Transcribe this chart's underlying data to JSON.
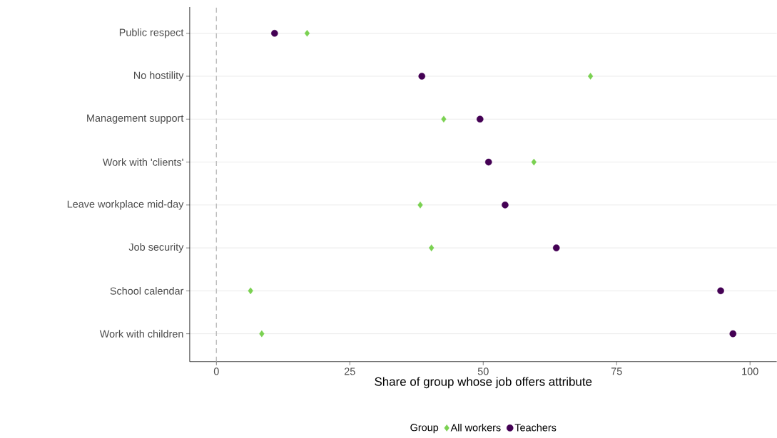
{
  "chart_data": {
    "type": "scatter",
    "orientation": "horizontal",
    "categories": [
      "Public respect",
      "No hostility",
      "Management support",
      "Work with 'clients'",
      "Leave workplace mid-day",
      "Job security",
      "School calendar",
      "Work with children"
    ],
    "series": [
      {
        "name": "All workers",
        "color": "#7ad151",
        "marker": "diamond",
        "values": [
          17.0,
          70.1,
          42.6,
          59.5,
          38.2,
          40.3,
          6.4,
          8.5
        ]
      },
      {
        "name": "Teachers",
        "color": "#440154",
        "marker": "circle",
        "values": [
          10.9,
          38.5,
          49.4,
          51.0,
          54.1,
          63.7,
          94.5,
          96.8
        ]
      }
    ],
    "xlabel": "Share of group whose job offers attribute",
    "legend_title": "Group",
    "legend": "bottom",
    "xlim": [
      -5,
      105
    ],
    "xticks": [
      0,
      25,
      50,
      75,
      100
    ],
    "grid": "y",
    "ref_lines": [
      {
        "axis": "x",
        "value": 0,
        "color": "#bebebe",
        "line_style": "dashed"
      }
    ]
  }
}
